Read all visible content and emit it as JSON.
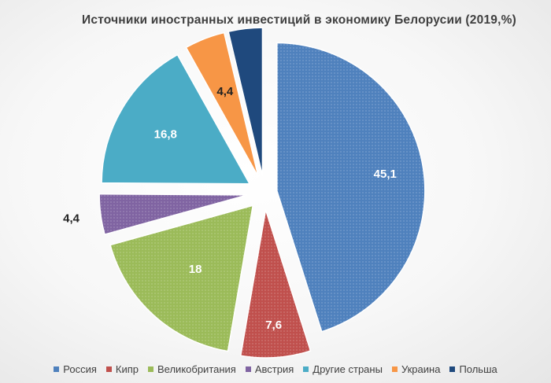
{
  "chart_data": {
    "type": "pie",
    "title": "Источники иностранных инвестиций в экономику Белорусии (2019,%)",
    "categories": [
      "Россия",
      "Кипр",
      "Великобритания",
      "Австрия",
      "Другие страны",
      "Украина",
      "Польша"
    ],
    "values": [
      45.1,
      7.6,
      18,
      4.4,
      16.8,
      4.4,
      3.7
    ],
    "labels": [
      "45,1",
      "7,6",
      "18",
      "4,4",
      "16,8",
      "4,4",
      ""
    ],
    "colors": [
      "#4f81bd",
      "#c0504d",
      "#9bbb59",
      "#8064a2",
      "#4bacc6",
      "#f79646",
      "#1f497d"
    ],
    "exploded": true,
    "legend_position": "bottom"
  }
}
